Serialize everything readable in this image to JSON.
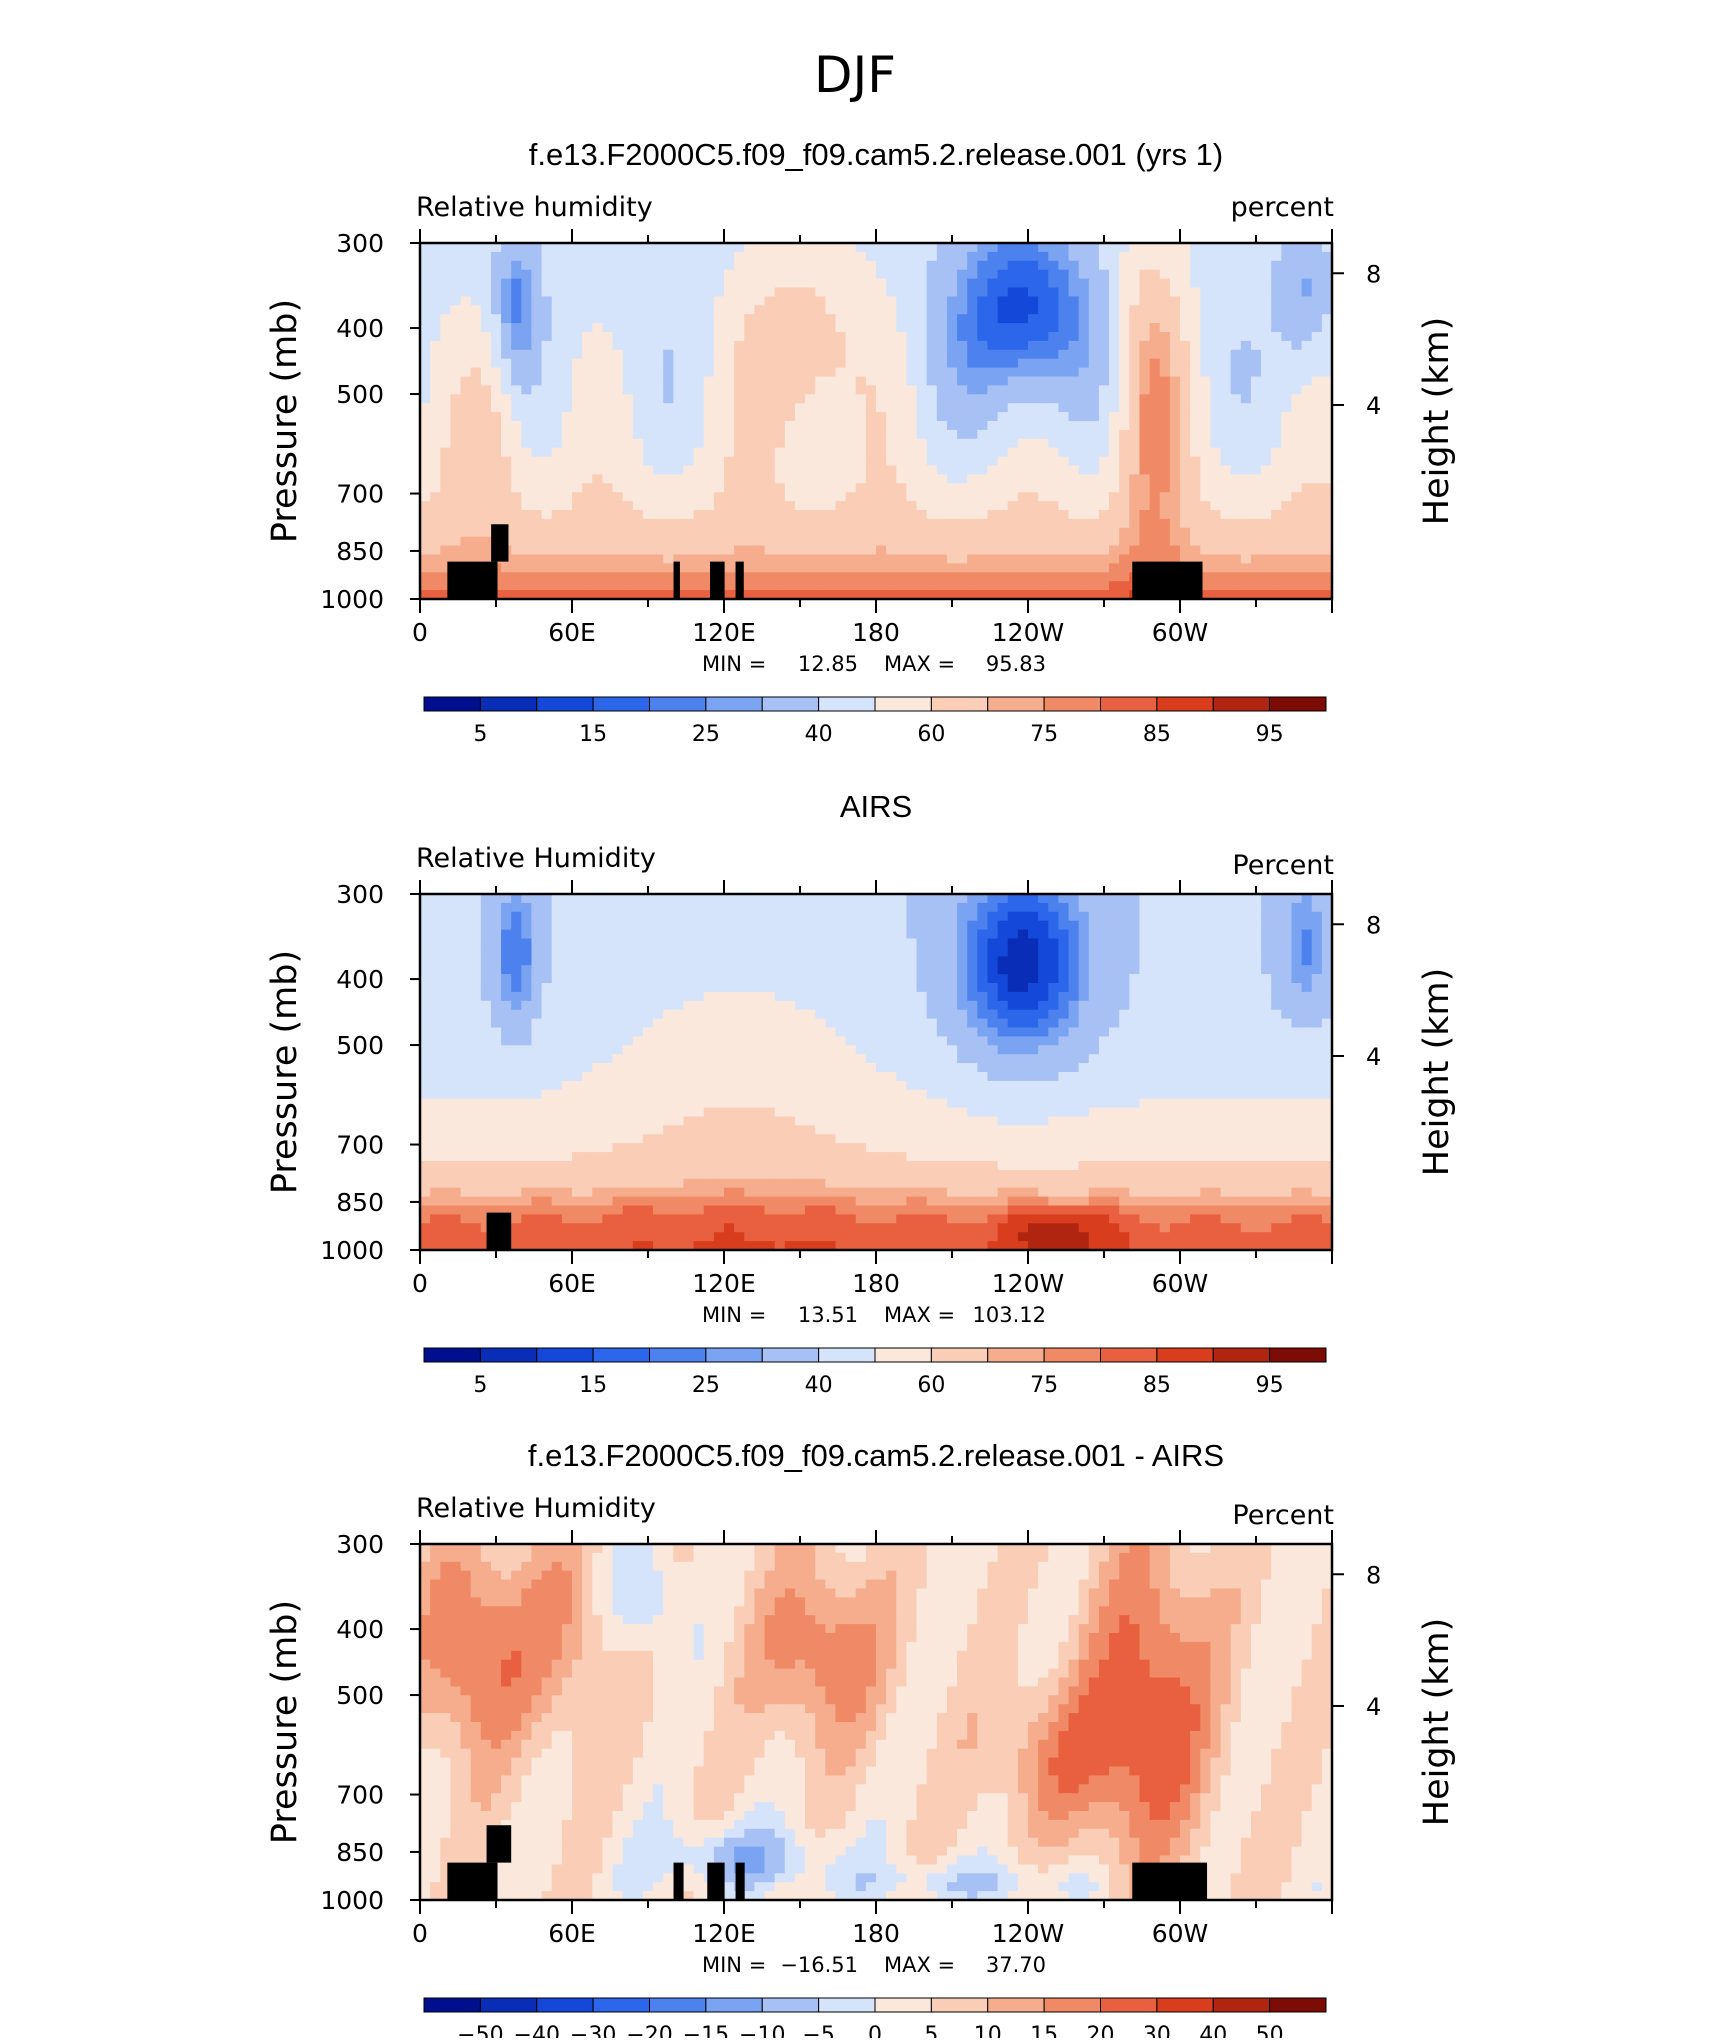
{
  "page": {
    "title": "DJF"
  },
  "colors": {
    "palette_rh": [
      "#000f8e",
      "#0a2db8",
      "#1448d8",
      "#2c66ea",
      "#4d82ee",
      "#7aa3f2",
      "#a8c1f5",
      "#d6e4fb",
      "#fbe8dc",
      "#f9cdb6",
      "#f5ad8d",
      "#f08a66",
      "#e8603f",
      "#d83e1e",
      "#b02510",
      "#7e0c06"
    ],
    "palette_diff": [
      "#000f8e",
      "#0a2db8",
      "#1448d8",
      "#2c66ea",
      "#4d82ee",
      "#7aa3f2",
      "#a8c1f5",
      "#d6e4fb",
      "#fbe8dc",
      "#f9cdb6",
      "#f5ad8d",
      "#f08a66",
      "#e8603f",
      "#d83e1e",
      "#b02510",
      "#7e0c06"
    ],
    "land": "#000000"
  },
  "panels": [
    {
      "title": "f.e13.F2000C5.f09_f09.cam5.2.release.001 (yrs 1)",
      "variable_label": "Relative  humidity",
      "units_label": "percent",
      "y_left_label": "Pressure  (mb)",
      "y_right_label": "Height  (km)",
      "stats": {
        "min_label": "MIN =",
        "min": "12.85",
        "max_label": "MAX =",
        "max": "95.83"
      },
      "colorbar_labels": [
        "5",
        "15",
        "25",
        "40",
        "60",
        "75",
        "85",
        "95"
      ]
    },
    {
      "title": "AIRS",
      "variable_label": "Relative  Humidity",
      "units_label": "Percent",
      "y_left_label": "Pressure  (mb)",
      "y_right_label": "Height  (km)",
      "stats": {
        "min_label": "MIN =",
        "min": "13.51",
        "max_label": "MAX =",
        "max": "103.12"
      },
      "colorbar_labels": [
        "5",
        "15",
        "25",
        "40",
        "60",
        "75",
        "85",
        "95"
      ]
    },
    {
      "title": "f.e13.F2000C5.f09_f09.cam5.2.release.001 - AIRS",
      "variable_label": "Relative  Humidity",
      "units_label": "Percent",
      "y_left_label": "Pressure  (mb)",
      "y_right_label": "Height  (km)",
      "stats": {
        "min_label": "MIN =",
        "min": "−16.51",
        "max_label": "MAX =",
        "max": "37.70"
      },
      "colorbar_labels": [
        "−50",
        "−40",
        "−30",
        "−20",
        "−15",
        "−10",
        "−5",
        "0",
        "5",
        "10",
        "15",
        "20",
        "30",
        "40",
        "50"
      ]
    }
  ],
  "chart_data": [
    {
      "type": "heatmap",
      "title": "f.e13.F2000C5.f09_f09.cam5.2.release.001 (yrs 1)",
      "x_ticks": [
        "0",
        "60E",
        "120E",
        "180",
        "120W",
        "60W"
      ],
      "y_ticks_left": [
        "300",
        "400",
        "500",
        "700",
        "850",
        "1000"
      ],
      "y_ticks_right": [
        "8",
        "4"
      ],
      "y_scale": "log",
      "x_range": [
        0,
        360
      ],
      "y_range": [
        1000,
        300
      ],
      "min": 12.85,
      "max": 95.83
    },
    {
      "type": "heatmap",
      "title": "AIRS",
      "x_ticks": [
        "0",
        "60E",
        "120E",
        "180",
        "120W",
        "60W"
      ],
      "y_ticks_left": [
        "300",
        "400",
        "500",
        "700",
        "850",
        "1000"
      ],
      "y_ticks_right": [
        "8",
        "4"
      ],
      "y_scale": "log",
      "x_range": [
        0,
        360
      ],
      "y_range": [
        1000,
        300
      ],
      "min": 13.51,
      "max": 103.12
    },
    {
      "type": "heatmap",
      "title": "f.e13.F2000C5.f09_f09.cam5.2.release.001 - AIRS",
      "x_ticks": [
        "0",
        "60E",
        "120E",
        "180",
        "120W",
        "60W"
      ],
      "y_ticks_left": [
        "300",
        "400",
        "500",
        "700",
        "850",
        "1000"
      ],
      "y_ticks_right": [
        "8",
        "4"
      ],
      "y_scale": "log",
      "x_range": [
        0,
        360
      ],
      "y_range": [
        1000,
        300
      ],
      "min": -16.51,
      "max": 37.7
    }
  ]
}
